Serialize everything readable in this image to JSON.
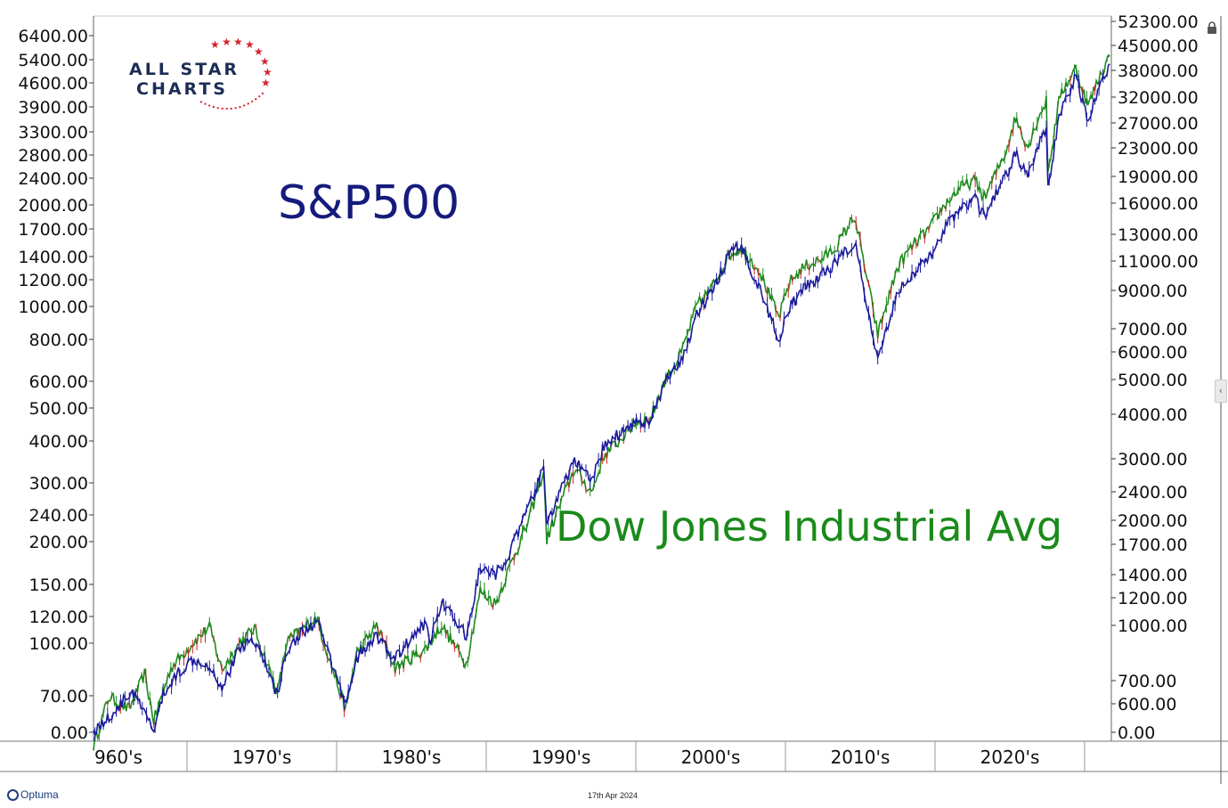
{
  "brand": {
    "line1": "ALL STAR",
    "line2": "CHARTS"
  },
  "footer": {
    "logo_text": "Optuma",
    "date": "17th Apr 2024"
  },
  "chart_data": {
    "type": "line",
    "annotations": {
      "sp500": "S&P500",
      "dow": "Dow Jones Industrial Avg"
    },
    "x_labels": [
      "960's",
      "1970's",
      "1980's",
      "1990's",
      "2000's",
      "2010's",
      "2020's"
    ],
    "x_range": [
      1958.5,
      2024.3
    ],
    "left_axis": {
      "series": "S&P500",
      "scale": "log",
      "ticks": [
        "6400.00",
        "5400.00",
        "4600.00",
        "3900.00",
        "3300.00",
        "2800.00",
        "2400.00",
        "2000.00",
        "1700.00",
        "1400.00",
        "1200.00",
        "1000.00",
        "800.00",
        "600.00",
        "500.00",
        "400.00",
        "300.00",
        "240.00",
        "200.00",
        "150.00",
        "120.00",
        "100.00",
        "70.00",
        "0.00"
      ]
    },
    "right_axis": {
      "series": "Dow Jones Industrial Avg",
      "scale": "log",
      "ticks": [
        "52300.00",
        "45000.00",
        "38000.00",
        "32000.00",
        "27000.00",
        "23000.00",
        "19000.00",
        "16000.00",
        "13000.00",
        "11000.00",
        "9000.00",
        "7000.00",
        "6000.00",
        "5000.00",
        "4000.00",
        "3000.00",
        "2400.00",
        "2000.00",
        "1700.00",
        "1400.00",
        "1200.00",
        "1000.00",
        "700.00",
        "600.00",
        "0.00"
      ]
    },
    "series": [
      {
        "name": "S&P500",
        "color": "#1a1a9c",
        "points": [
          [
            1958.5,
            55
          ],
          [
            1959.5,
            60
          ],
          [
            1961,
            72
          ],
          [
            1962.4,
            55
          ],
          [
            1963,
            70
          ],
          [
            1964,
            82
          ],
          [
            1965,
            90
          ],
          [
            1966,
            86
          ],
          [
            1966.8,
            74
          ],
          [
            1968,
            98
          ],
          [
            1968.9,
            103
          ],
          [
            1970.4,
            70
          ],
          [
            1971,
            96
          ],
          [
            1972,
            108
          ],
          [
            1973,
            115
          ],
          [
            1974.8,
            66
          ],
          [
            1975.5,
            90
          ],
          [
            1976.8,
            105
          ],
          [
            1978,
            90
          ],
          [
            1979,
            103
          ],
          [
            1980,
            115
          ],
          [
            1980.3,
            102
          ],
          [
            1981,
            134
          ],
          [
            1982.6,
            104
          ],
          [
            1983.5,
            168
          ],
          [
            1984.5,
            158
          ],
          [
            1985.5,
            190
          ],
          [
            1986.5,
            245
          ],
          [
            1987.6,
            330
          ],
          [
            1987.8,
            226
          ],
          [
            1988.5,
            270
          ],
          [
            1989.6,
            350
          ],
          [
            1990.7,
            300
          ],
          [
            1991.5,
            385
          ],
          [
            1992.5,
            420
          ],
          [
            1993.5,
            455
          ],
          [
            1994.5,
            455
          ],
          [
            1995.5,
            600
          ],
          [
            1996.5,
            680
          ],
          [
            1997.5,
            950
          ],
          [
            1998.5,
            1100
          ],
          [
            1999.5,
            1400
          ],
          [
            2000.3,
            1520
          ],
          [
            2001.5,
            1150
          ],
          [
            2002.8,
            800
          ],
          [
            2003.5,
            990
          ],
          [
            2004.5,
            1140
          ],
          [
            2005.5,
            1230
          ],
          [
            2006.5,
            1350
          ],
          [
            2007.7,
            1560
          ],
          [
            2008.7,
            900
          ],
          [
            2009.2,
            680
          ],
          [
            2010.5,
            1120
          ],
          [
            2011.5,
            1240
          ],
          [
            2012.5,
            1400
          ],
          [
            2013.5,
            1700
          ],
          [
            2014.5,
            1960
          ],
          [
            2015.5,
            2080
          ],
          [
            2016.1,
            1850
          ],
          [
            2017.5,
            2450
          ],
          [
            2018.1,
            2850
          ],
          [
            2018.9,
            2420
          ],
          [
            2019.6,
            3000
          ],
          [
            2020.1,
            3380
          ],
          [
            2020.2,
            2240
          ],
          [
            2021,
            3800
          ],
          [
            2022,
            4790
          ],
          [
            2022.8,
            3580
          ],
          [
            2023.5,
            4450
          ],
          [
            2024.2,
            5250
          ]
        ]
      },
      {
        "name": "Dow Jones Industrial Avg",
        "color": "#1e8a1e",
        "points": [
          [
            1958.5,
            460
          ],
          [
            1959.5,
            630
          ],
          [
            1960.8,
            580
          ],
          [
            1961.8,
            730
          ],
          [
            1962.4,
            540
          ],
          [
            1963.5,
            760
          ],
          [
            1965,
            900
          ],
          [
            1966,
            990
          ],
          [
            1966.8,
            750
          ],
          [
            1968,
            900
          ],
          [
            1968.9,
            980
          ],
          [
            1970.4,
            650
          ],
          [
            1971,
            900
          ],
          [
            1972.9,
            1050
          ],
          [
            1974.8,
            580
          ],
          [
            1975.5,
            830
          ],
          [
            1976.8,
            1000
          ],
          [
            1978,
            760
          ],
          [
            1980,
            860
          ],
          [
            1981,
            1000
          ],
          [
            1982.6,
            780
          ],
          [
            1983.5,
            1250
          ],
          [
            1984.5,
            1150
          ],
          [
            1985.5,
            1500
          ],
          [
            1986.5,
            1900
          ],
          [
            1987.6,
            2700
          ],
          [
            1987.8,
            1740
          ],
          [
            1988.5,
            2100
          ],
          [
            1989.6,
            2750
          ],
          [
            1990.7,
            2360
          ],
          [
            1991.5,
            3000
          ],
          [
            1992.5,
            3300
          ],
          [
            1993.5,
            3700
          ],
          [
            1994.5,
            3800
          ],
          [
            1995.5,
            4900
          ],
          [
            1996.5,
            5800
          ],
          [
            1997.5,
            7900
          ],
          [
            1998.5,
            8900
          ],
          [
            1999.5,
            10800
          ],
          [
            2000.3,
            11500
          ],
          [
            2001.5,
            10000
          ],
          [
            2002.8,
            7300
          ],
          [
            2003.5,
            9200
          ],
          [
            2004.5,
            10200
          ],
          [
            2005.5,
            10600
          ],
          [
            2006.5,
            11500
          ],
          [
            2007.7,
            14100
          ],
          [
            2008.7,
            8500
          ],
          [
            2009.2,
            6550
          ],
          [
            2010.5,
            10200
          ],
          [
            2011.5,
            11700
          ],
          [
            2012.5,
            12900
          ],
          [
            2013.5,
            15100
          ],
          [
            2014.5,
            16900
          ],
          [
            2015.5,
            17700
          ],
          [
            2016.1,
            15800
          ],
          [
            2017.5,
            21500
          ],
          [
            2018.1,
            26600
          ],
          [
            2018.9,
            22000
          ],
          [
            2019.6,
            26800
          ],
          [
            2020.1,
            29500
          ],
          [
            2020.2,
            18600
          ],
          [
            2021,
            31000
          ],
          [
            2022,
            36500
          ],
          [
            2022.8,
            28700
          ],
          [
            2023.5,
            34500
          ],
          [
            2024.2,
            39500
          ]
        ]
      }
    ]
  }
}
